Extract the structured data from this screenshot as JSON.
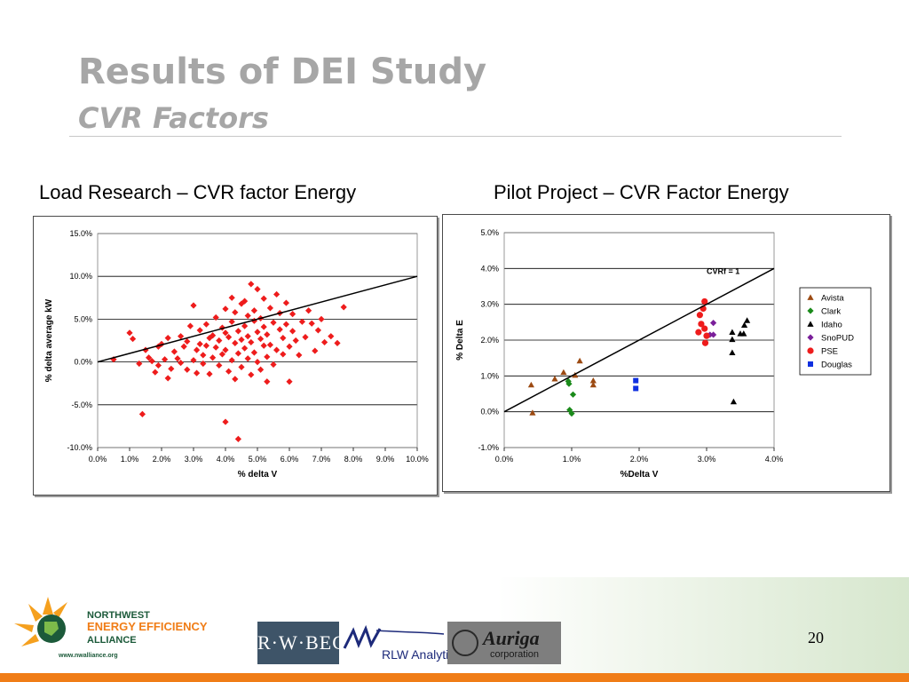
{
  "slide": {
    "title": "Results of DEI Study",
    "subtitle": "CVR Factors",
    "page_number": "20"
  },
  "colors": {
    "title_gray": "#a6a6a6",
    "accent_orange": "#f07d17",
    "grid": "#000000"
  },
  "logos": {
    "nw_line1": "NORTHWEST",
    "nw_line2": "ENERGY EFFICIENCY",
    "nw_line3": "ALLIANCE",
    "nw_url": "www.nwalliance.org",
    "rwbeck": "R·W·BECK",
    "rlw": "RLW Analytics",
    "auriga": "Auriga",
    "auriga_sub": "corporation"
  },
  "chart_data": [
    {
      "type": "scatter",
      "caption": "Load Research – CVR factor Energy",
      "xlabel": "% delta V",
      "ylabel": "% delta average kW",
      "xlim": [
        0,
        10
      ],
      "ylim": [
        -10,
        15
      ],
      "x_ticks": [
        "0.0%",
        "1.0%",
        "2.0%",
        "3.0%",
        "4.0%",
        "5.0%",
        "6.0%",
        "7.0%",
        "8.0%",
        "9.0%",
        "10.0%"
      ],
      "y_ticks": [
        "-10.0%",
        "-5.0%",
        "0.0%",
        "5.0%",
        "10.0%",
        "15.0%"
      ],
      "grid": "horizontal",
      "marker_color": "#ee1c1c",
      "reference_line": {
        "x": [
          0,
          10
        ],
        "y": [
          0,
          10
        ]
      },
      "points": [
        [
          0.5,
          0.3
        ],
        [
          1.0,
          3.4
        ],
        [
          1.1,
          2.7
        ],
        [
          1.3,
          -0.2
        ],
        [
          1.4,
          -6.1
        ],
        [
          1.5,
          1.4
        ],
        [
          1.6,
          0.5
        ],
        [
          1.7,
          0.1
        ],
        [
          1.8,
          -1.2
        ],
        [
          1.9,
          -0.4
        ],
        [
          1.9,
          1.8
        ],
        [
          2.0,
          2.1
        ],
        [
          2.1,
          0.3
        ],
        [
          2.2,
          -1.9
        ],
        [
          2.2,
          2.8
        ],
        [
          2.3,
          -0.8
        ],
        [
          2.4,
          1.2
        ],
        [
          2.5,
          0.4
        ],
        [
          2.6,
          3.0
        ],
        [
          2.6,
          -0.1
        ],
        [
          2.7,
          1.8
        ],
        [
          2.8,
          -0.9
        ],
        [
          2.8,
          2.4
        ],
        [
          2.9,
          4.2
        ],
        [
          3.0,
          0.2
        ],
        [
          3.0,
          6.6
        ],
        [
          3.1,
          1.4
        ],
        [
          3.1,
          -1.3
        ],
        [
          3.2,
          3.7
        ],
        [
          3.2,
          2.1
        ],
        [
          3.3,
          0.8
        ],
        [
          3.3,
          -0.2
        ],
        [
          3.4,
          4.4
        ],
        [
          3.4,
          1.9
        ],
        [
          3.5,
          2.8
        ],
        [
          3.5,
          -1.4
        ],
        [
          3.6,
          0.5
        ],
        [
          3.6,
          3.1
        ],
        [
          3.7,
          5.2
        ],
        [
          3.7,
          1.7
        ],
        [
          3.8,
          -0.4
        ],
        [
          3.8,
          2.5
        ],
        [
          3.9,
          4.0
        ],
        [
          3.9,
          0.9
        ],
        [
          4.0,
          6.2
        ],
        [
          4.0,
          3.4
        ],
        [
          4.0,
          -7.0
        ],
        [
          4.0,
          1.4
        ],
        [
          4.1,
          -1.1
        ],
        [
          4.1,
          2.9
        ],
        [
          4.2,
          7.5
        ],
        [
          4.2,
          0.2
        ],
        [
          4.2,
          4.7
        ],
        [
          4.3,
          2.2
        ],
        [
          4.3,
          -2.0
        ],
        [
          4.3,
          5.8
        ],
        [
          4.4,
          1.0
        ],
        [
          4.4,
          3.6
        ],
        [
          4.4,
          -9.0
        ],
        [
          4.5,
          6.8
        ],
        [
          4.5,
          2.6
        ],
        [
          4.5,
          -0.6
        ],
        [
          4.6,
          4.2
        ],
        [
          4.6,
          1.6
        ],
        [
          4.6,
          7.1
        ],
        [
          4.7,
          3.0
        ],
        [
          4.7,
          0.4
        ],
        [
          4.7,
          5.4
        ],
        [
          4.8,
          9.1
        ],
        [
          4.8,
          2.3
        ],
        [
          4.8,
          -1.5
        ],
        [
          4.9,
          4.8
        ],
        [
          4.9,
          1.1
        ],
        [
          4.9,
          6.0
        ],
        [
          5.0,
          3.5
        ],
        [
          5.0,
          0.0
        ],
        [
          5.0,
          8.5
        ],
        [
          5.1,
          2.7
        ],
        [
          5.1,
          5.1
        ],
        [
          5.1,
          -0.9
        ],
        [
          5.2,
          1.9
        ],
        [
          5.2,
          7.4
        ],
        [
          5.2,
          4.1
        ],
        [
          5.3,
          0.6
        ],
        [
          5.3,
          3.2
        ],
        [
          5.3,
          -2.3
        ],
        [
          5.4,
          6.3
        ],
        [
          5.4,
          2.0
        ],
        [
          5.5,
          4.6
        ],
        [
          5.5,
          -0.3
        ],
        [
          5.6,
          1.4
        ],
        [
          5.6,
          7.9
        ],
        [
          5.7,
          3.8
        ],
        [
          5.7,
          5.7
        ],
        [
          5.8,
          0.9
        ],
        [
          5.8,
          2.8
        ],
        [
          5.9,
          6.9
        ],
        [
          5.9,
          4.4
        ],
        [
          6.0,
          -2.3
        ],
        [
          6.0,
          1.8
        ],
        [
          6.1,
          3.6
        ],
        [
          6.1,
          5.6
        ],
        [
          6.2,
          2.5
        ],
        [
          6.3,
          0.8
        ],
        [
          6.4,
          4.7
        ],
        [
          6.5,
          2.9
        ],
        [
          6.6,
          6.0
        ],
        [
          6.7,
          4.5
        ],
        [
          6.8,
          1.3
        ],
        [
          6.9,
          3.7
        ],
        [
          7.0,
          5.0
        ],
        [
          7.1,
          2.3
        ],
        [
          7.3,
          3.0
        ],
        [
          7.5,
          2.2
        ],
        [
          7.7,
          6.4
        ]
      ]
    },
    {
      "type": "scatter",
      "caption": "Pilot Project – CVR Factor Energy",
      "xlabel": "%Delta V",
      "ylabel": "% Delta E",
      "xlim": [
        0,
        4
      ],
      "ylim": [
        -1,
        5
      ],
      "x_ticks": [
        "0.0%",
        "1.0%",
        "2.0%",
        "3.0%",
        "4.0%"
      ],
      "y_ticks": [
        "-1.0%",
        "0.0%",
        "1.0%",
        "2.0%",
        "3.0%",
        "4.0%",
        "5.0%"
      ],
      "grid": "horizontal",
      "reference_line": {
        "x": [
          0,
          4
        ],
        "y": [
          0,
          4
        ],
        "label": "CVRf = 1"
      },
      "series": [
        {
          "name": "Avista",
          "marker": "triangle",
          "color": "#9c4a12",
          "points": [
            [
              0.4,
              0.75
            ],
            [
              0.42,
              -0.03
            ],
            [
              0.75,
              0.92
            ],
            [
              0.88,
              1.1
            ],
            [
              1.05,
              1.02
            ],
            [
              1.12,
              1.42
            ],
            [
              1.32,
              0.75
            ],
            [
              1.32,
              0.87
            ]
          ]
        },
        {
          "name": "Clark",
          "marker": "diamond",
          "color": "#1a8a1a",
          "points": [
            [
              0.95,
              0.85
            ],
            [
              0.96,
              0.78
            ],
            [
              0.97,
              0.05
            ],
            [
              1.0,
              -0.05
            ],
            [
              1.02,
              0.48
            ]
          ]
        },
        {
          "name": "Idaho",
          "marker": "triangle",
          "color": "#000000",
          "points": [
            [
              3.38,
              2.22
            ],
            [
              3.38,
              2.02
            ],
            [
              3.38,
              1.65
            ],
            [
              3.5,
              2.18
            ],
            [
              3.55,
              2.18
            ],
            [
              3.56,
              2.42
            ],
            [
              3.6,
              2.55
            ],
            [
              3.4,
              0.28
            ]
          ]
        },
        {
          "name": "SnoPUD",
          "marker": "diamond",
          "color": "#7a1f9a",
          "points": [
            [
              3.1,
              2.48
            ],
            [
              3.1,
              2.15
            ],
            [
              3.05,
              2.15
            ]
          ]
        },
        {
          "name": "PSE",
          "marker": "circle",
          "color": "#ee1c1c",
          "points": [
            [
              2.9,
              2.7
            ],
            [
              2.92,
              2.45
            ],
            [
              2.95,
              2.88
            ],
            [
              2.97,
              3.08
            ],
            [
              2.97,
              2.32
            ],
            [
              3.0,
              2.12
            ],
            [
              2.98,
              1.92
            ],
            [
              2.88,
              2.22
            ]
          ]
        },
        {
          "name": "Douglas",
          "marker": "square",
          "color": "#1030e0",
          "points": [
            [
              1.95,
              0.87
            ],
            [
              1.95,
              0.65
            ]
          ]
        }
      ]
    }
  ]
}
